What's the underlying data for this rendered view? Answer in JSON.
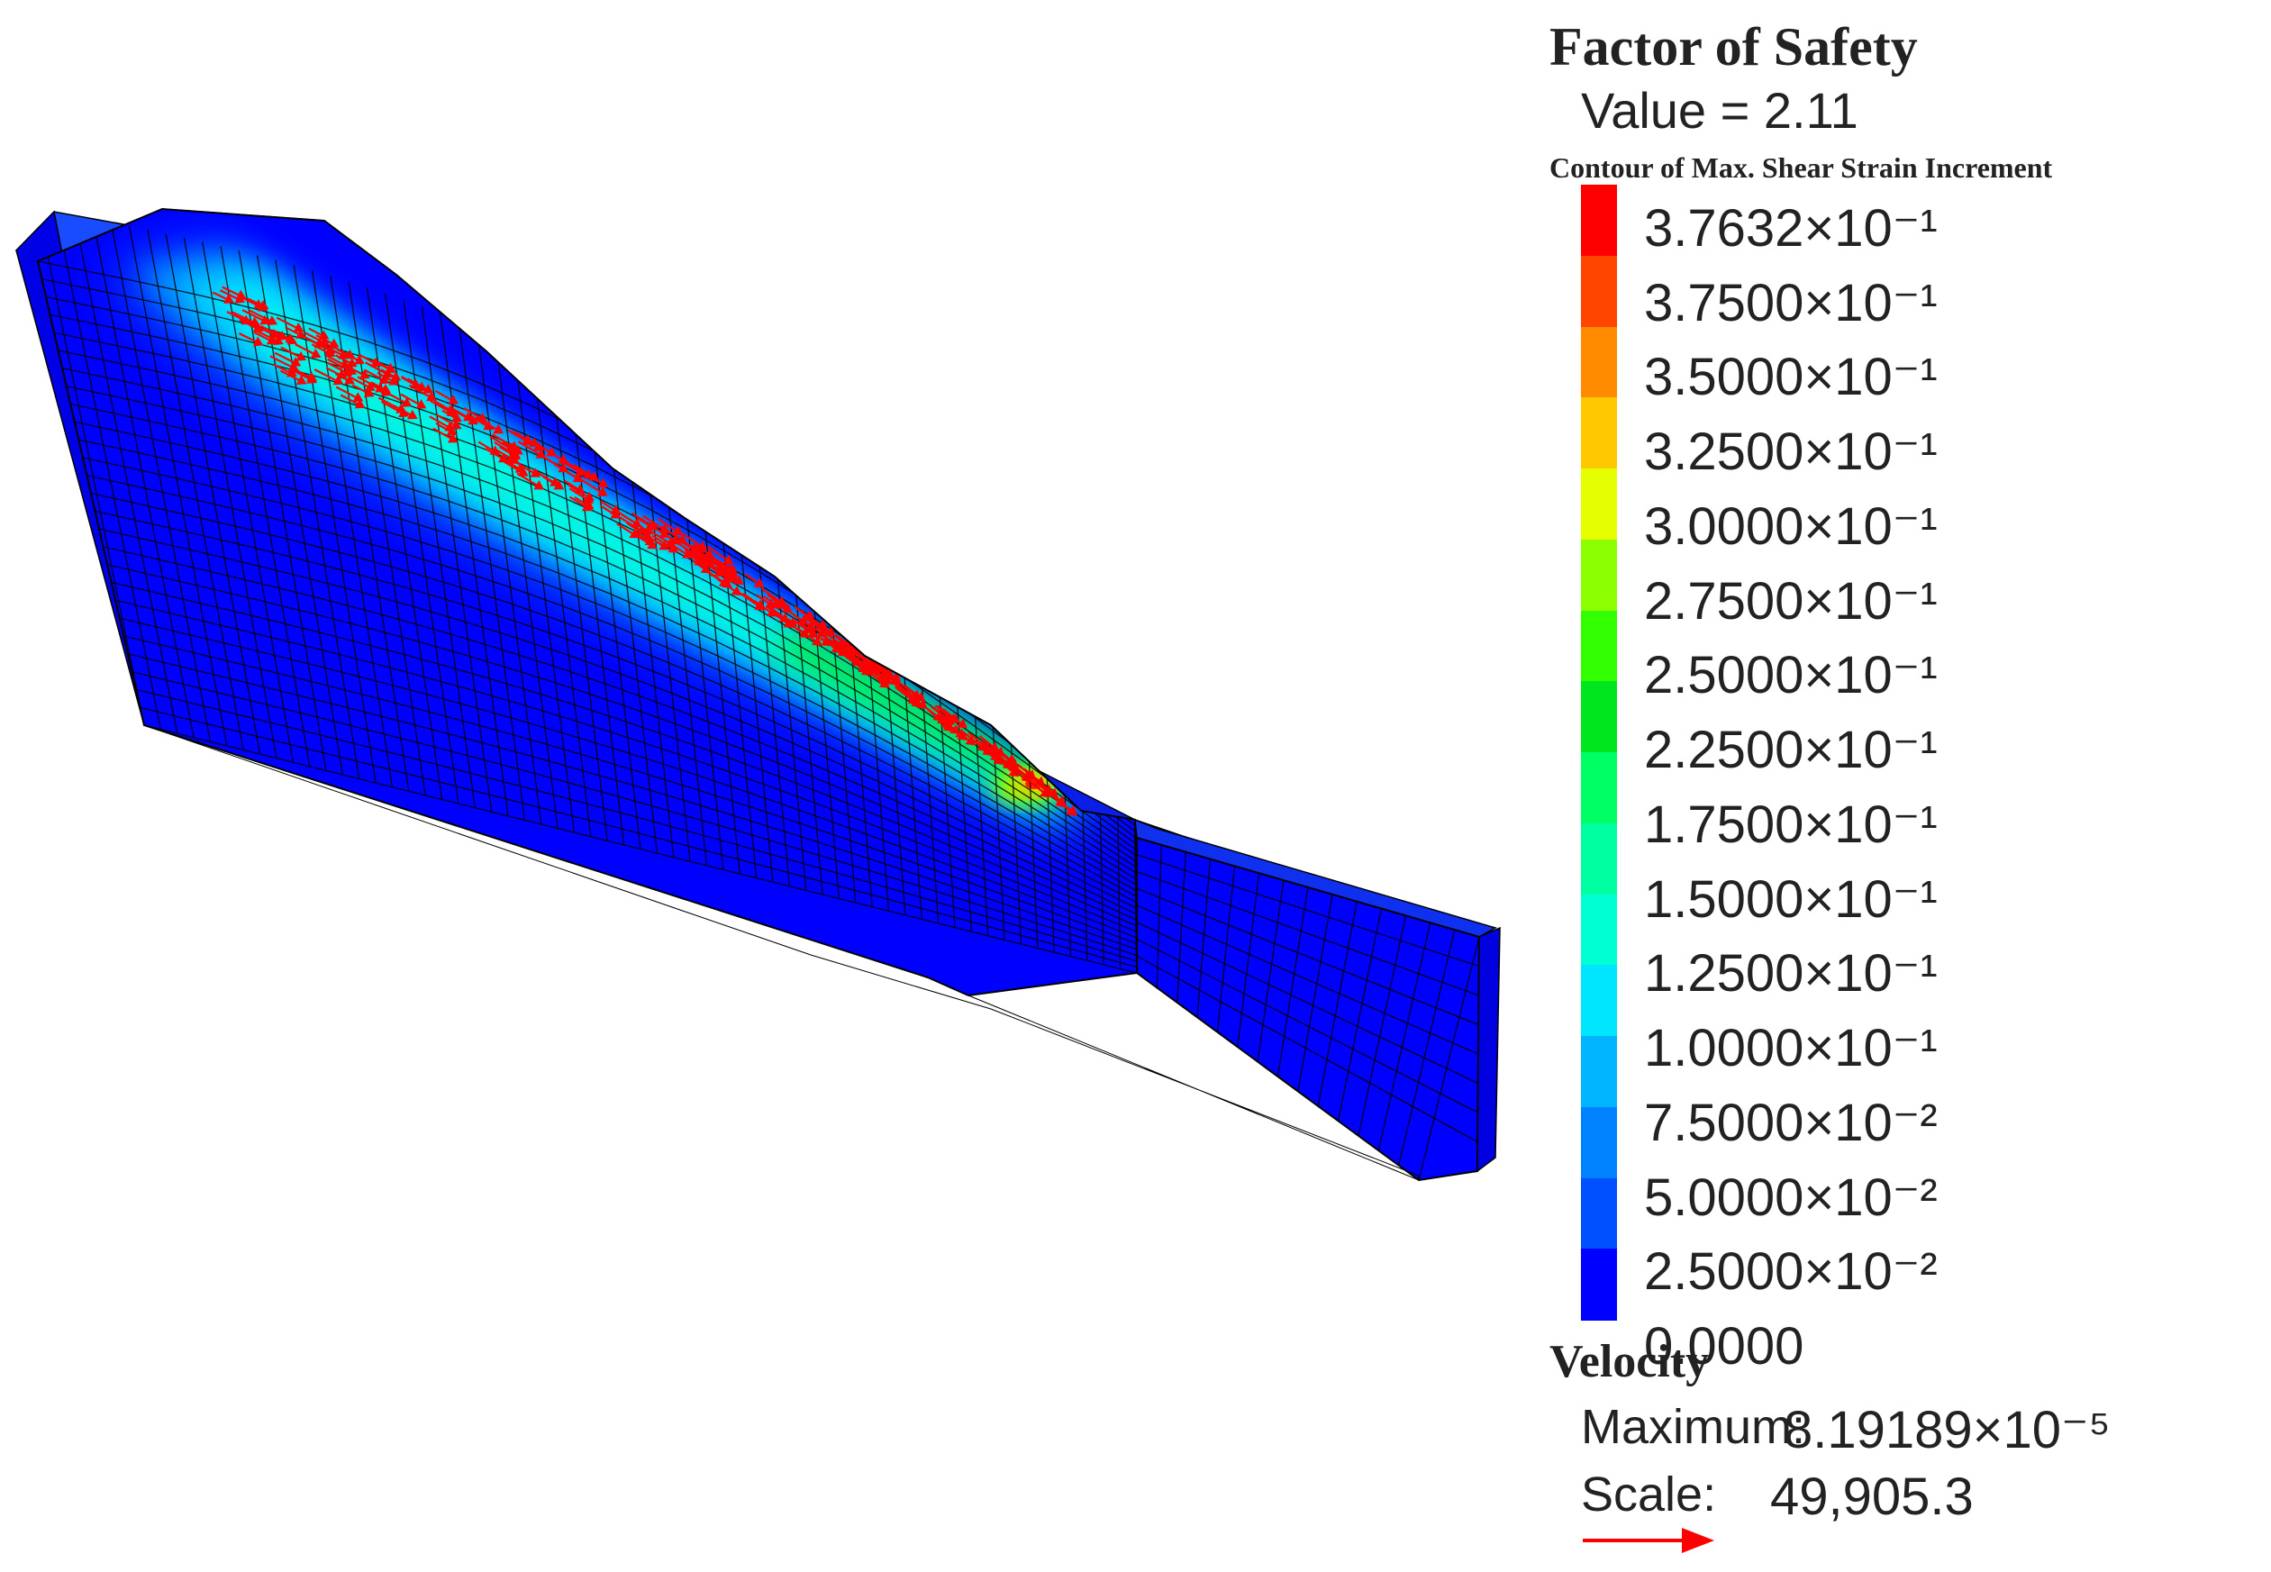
{
  "legend": {
    "fos_title": "Factor of Safety",
    "fos_value": "Value = 2.11",
    "contour_title": "Contour of Max. Shear Strain Increment",
    "levels": [
      {
        "label": "3.7632×10⁻¹",
        "color": "#ff0000"
      },
      {
        "label": "3.7500×10⁻¹",
        "color": "#ff4500"
      },
      {
        "label": "3.5000×10⁻¹",
        "color": "#ff8c00"
      },
      {
        "label": "3.2500×10⁻¹",
        "color": "#ffc800"
      },
      {
        "label": "3.0000×10⁻¹",
        "color": "#e6ff00"
      },
      {
        "label": "2.7500×10⁻¹",
        "color": "#8cff00"
      },
      {
        "label": "2.5000×10⁻¹",
        "color": "#32ff00"
      },
      {
        "label": "2.2500×10⁻¹",
        "color": "#00e61e"
      },
      {
        "label": "1.7500×10⁻¹",
        "color": "#00ff64"
      },
      {
        "label": "1.5000×10⁻¹",
        "color": "#00ffa0"
      },
      {
        "label": "1.2500×10⁻¹",
        "color": "#00ffd2"
      },
      {
        "label": "1.0000×10⁻¹",
        "color": "#00e6ff"
      },
      {
        "label": "7.5000×10⁻²",
        "color": "#00b4ff"
      },
      {
        "label": "5.0000×10⁻²",
        "color": "#0082ff"
      },
      {
        "label": "2.5000×10⁻²",
        "color": "#0050ff"
      },
      {
        "label": "0.0000",
        "color": "#0000ff"
      }
    ],
    "velocity_title": "Velocity",
    "velocity_max_label": "Maximum:",
    "velocity_max_value": "8.19189×10⁻⁵",
    "velocity_scale_label": "Scale:",
    "velocity_scale_value": "49,905.3"
  },
  "colors": {
    "mesh_base": "#0000ff",
    "mesh_lines": "#000000",
    "vector_arrows": "#ff0000"
  }
}
